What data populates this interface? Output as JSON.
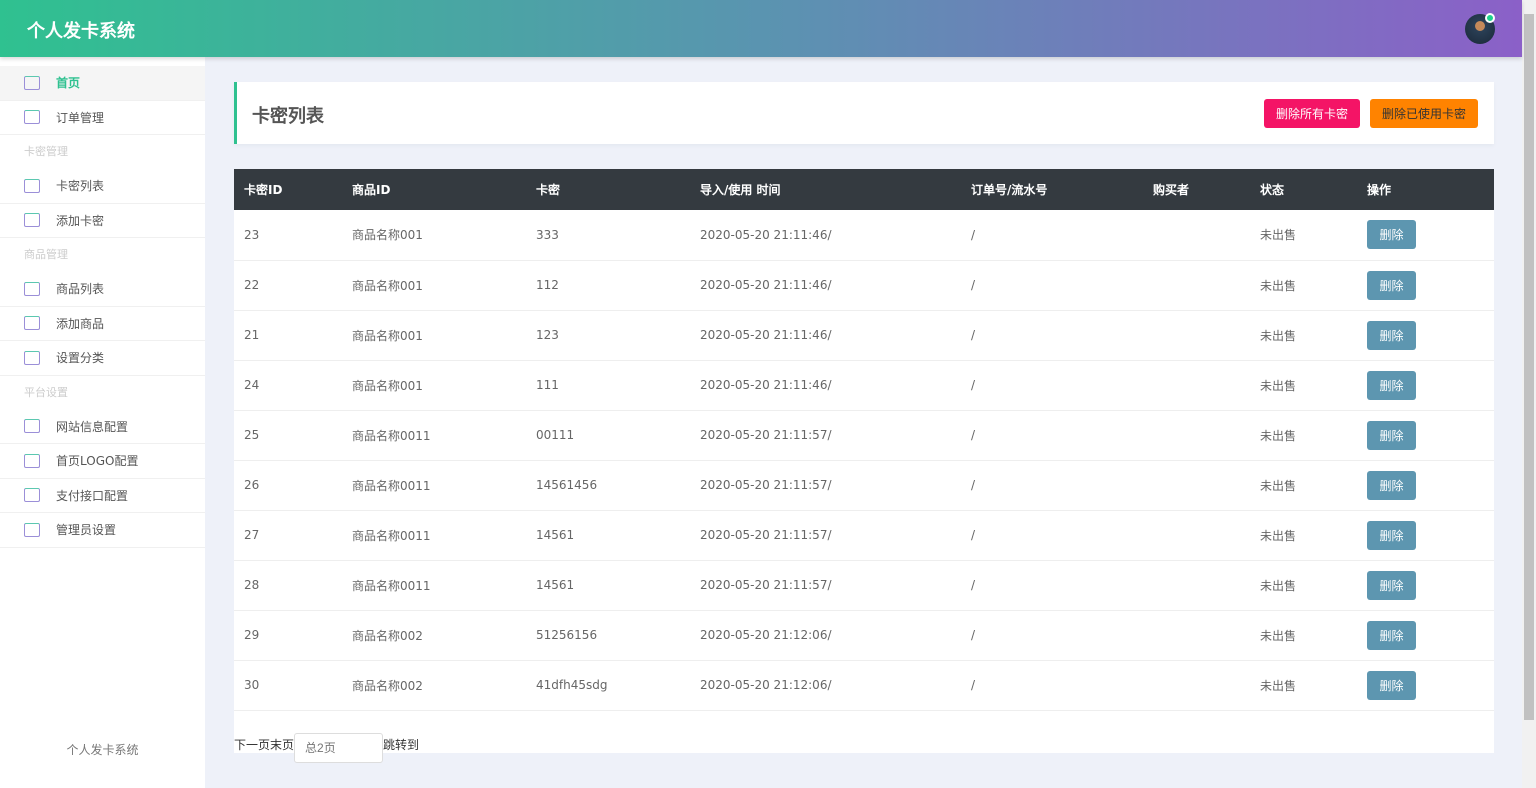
{
  "header": {
    "title": "个人发卡系统"
  },
  "sidebar": {
    "items": [
      {
        "type": "item",
        "label": "首页",
        "icon": "home-icon",
        "active": true
      },
      {
        "type": "item",
        "label": "订单管理",
        "icon": "clipboard-icon"
      },
      {
        "type": "group",
        "label": "卡密管理"
      },
      {
        "type": "item",
        "label": "卡密列表",
        "icon": "copy-icon"
      },
      {
        "type": "item",
        "label": "添加卡密",
        "icon": "copy-icon"
      },
      {
        "type": "group",
        "label": "商品管理"
      },
      {
        "type": "item",
        "label": "商品列表",
        "icon": "map-icon"
      },
      {
        "type": "item",
        "label": "添加商品",
        "icon": "map-icon"
      },
      {
        "type": "item",
        "label": "设置分类",
        "icon": "map-icon"
      },
      {
        "type": "group",
        "label": "平台设置"
      },
      {
        "type": "item",
        "label": "网站信息配置",
        "icon": "rocket-icon"
      },
      {
        "type": "item",
        "label": "首页LOGO配置",
        "icon": "layout-icon"
      },
      {
        "type": "item",
        "label": "支付接口配置",
        "icon": "crown-icon"
      },
      {
        "type": "item",
        "label": "管理员设置",
        "icon": "smile-icon"
      }
    ],
    "footer": "个人发卡系统"
  },
  "page": {
    "title": "卡密列表",
    "delete_all": "删除所有卡密",
    "delete_used": "删除已使用卡密"
  },
  "table": {
    "headers": [
      "卡密ID",
      "商品ID",
      "卡密",
      "导入/使用 时间",
      "订单号/流水号",
      "购买者",
      "状态",
      "操作"
    ],
    "action_label": "删除",
    "rows": [
      [
        "23",
        "商品名称001",
        "333",
        "2020-05-20 21:11:46/",
        "/",
        "",
        "未出售"
      ],
      [
        "22",
        "商品名称001",
        "112",
        "2020-05-20 21:11:46/",
        "/",
        "",
        "未出售"
      ],
      [
        "21",
        "商品名称001",
        "123",
        "2020-05-20 21:11:46/",
        "/",
        "",
        "未出售"
      ],
      [
        "24",
        "商品名称001",
        "111",
        "2020-05-20 21:11:46/",
        "/",
        "",
        "未出售"
      ],
      [
        "25",
        "商品名称0011",
        "00111",
        "2020-05-20 21:11:57/",
        "/",
        "",
        "未出售"
      ],
      [
        "26",
        "商品名称0011",
        "14561456",
        "2020-05-20 21:11:57/",
        "/",
        "",
        "未出售"
      ],
      [
        "27",
        "商品名称0011",
        "14561",
        "2020-05-20 21:11:57/",
        "/",
        "",
        "未出售"
      ],
      [
        "28",
        "商品名称0011",
        "14561",
        "2020-05-20 21:11:57/",
        "/",
        "",
        "未出售"
      ],
      [
        "29",
        "商品名称002",
        "51256156",
        "2020-05-20 21:12:06/",
        "/",
        "",
        "未出售"
      ],
      [
        "30",
        "商品名称002",
        "41dfh45sdg",
        "2020-05-20 21:12:06/",
        "/",
        "",
        "未出售"
      ]
    ]
  },
  "pager": {
    "links": "下一页末页",
    "input_placeholder": "总2页",
    "jump": "跳转到"
  }
}
